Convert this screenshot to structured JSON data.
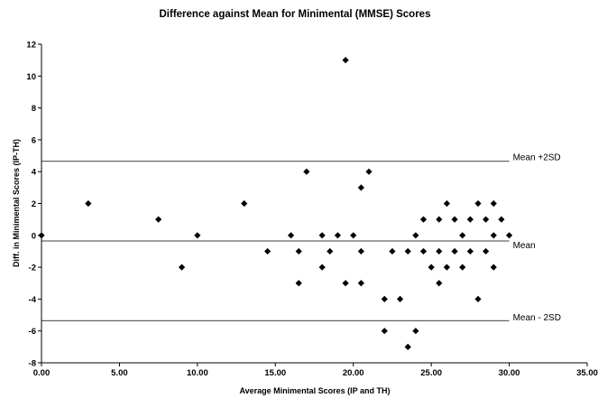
{
  "chart_data": {
    "type": "scatter",
    "title": "Difference against Mean for Minimental (MMSE) Scores",
    "xlabel": "Average Minimental Scores (IP and TH)",
    "ylabel": "Diff. in Minimental Scores (IP-TH)",
    "xlim": [
      0,
      35
    ],
    "ylim": [
      -8,
      12
    ],
    "x_ticks": [
      "0.00",
      "5.00",
      "10.00",
      "15.00",
      "20.00",
      "25.00",
      "30.00",
      "35.00"
    ],
    "y_ticks": [
      "-8",
      "-6",
      "-4",
      "-2",
      "0",
      "2",
      "4",
      "6",
      "8",
      "10",
      "12"
    ],
    "grid": false,
    "marker": "diamond",
    "points": [
      [
        0,
        0
      ],
      [
        3,
        2
      ],
      [
        7.5,
        1
      ],
      [
        9,
        -2
      ],
      [
        10,
        0
      ],
      [
        13,
        2
      ],
      [
        14.5,
        -1
      ],
      [
        16,
        0
      ],
      [
        16.5,
        -1
      ],
      [
        16.5,
        -3
      ],
      [
        17,
        4
      ],
      [
        18,
        0
      ],
      [
        18,
        -2
      ],
      [
        18.5,
        -1
      ],
      [
        19,
        0
      ],
      [
        19.5,
        11
      ],
      [
        19.5,
        -3
      ],
      [
        20,
        0
      ],
      [
        20.5,
        -1
      ],
      [
        20.5,
        -3
      ],
      [
        20.5,
        3
      ],
      [
        21,
        4
      ],
      [
        22,
        -4
      ],
      [
        22,
        -6
      ],
      [
        22.5,
        -1
      ],
      [
        23,
        -4
      ],
      [
        23.5,
        -1
      ],
      [
        23.5,
        -7
      ],
      [
        24,
        0
      ],
      [
        24,
        -6
      ],
      [
        24.5,
        1
      ],
      [
        24.5,
        -1
      ],
      [
        25,
        -2
      ],
      [
        25.5,
        1
      ],
      [
        25.5,
        -1
      ],
      [
        25.5,
        -3
      ],
      [
        26,
        2
      ],
      [
        26,
        -2
      ],
      [
        26.5,
        1
      ],
      [
        26.5,
        -1
      ],
      [
        27,
        0
      ],
      [
        27,
        -2
      ],
      [
        27.5,
        1
      ],
      [
        27.5,
        -1
      ],
      [
        28,
        2
      ],
      [
        28,
        -4
      ],
      [
        28.5,
        1
      ],
      [
        28.5,
        -1
      ],
      [
        29,
        2
      ],
      [
        29,
        0
      ],
      [
        29,
        -2
      ],
      [
        29.5,
        1
      ],
      [
        30,
        0
      ]
    ],
    "reference_lines": [
      {
        "label": "Mean +2SD",
        "y": 4.65,
        "x_end": 30.0
      },
      {
        "label": "Mean",
        "y": -0.35,
        "x_end": 30.0
      },
      {
        "label": "Mean - 2SD",
        "y": -5.35,
        "x_end": 30.0
      }
    ]
  }
}
